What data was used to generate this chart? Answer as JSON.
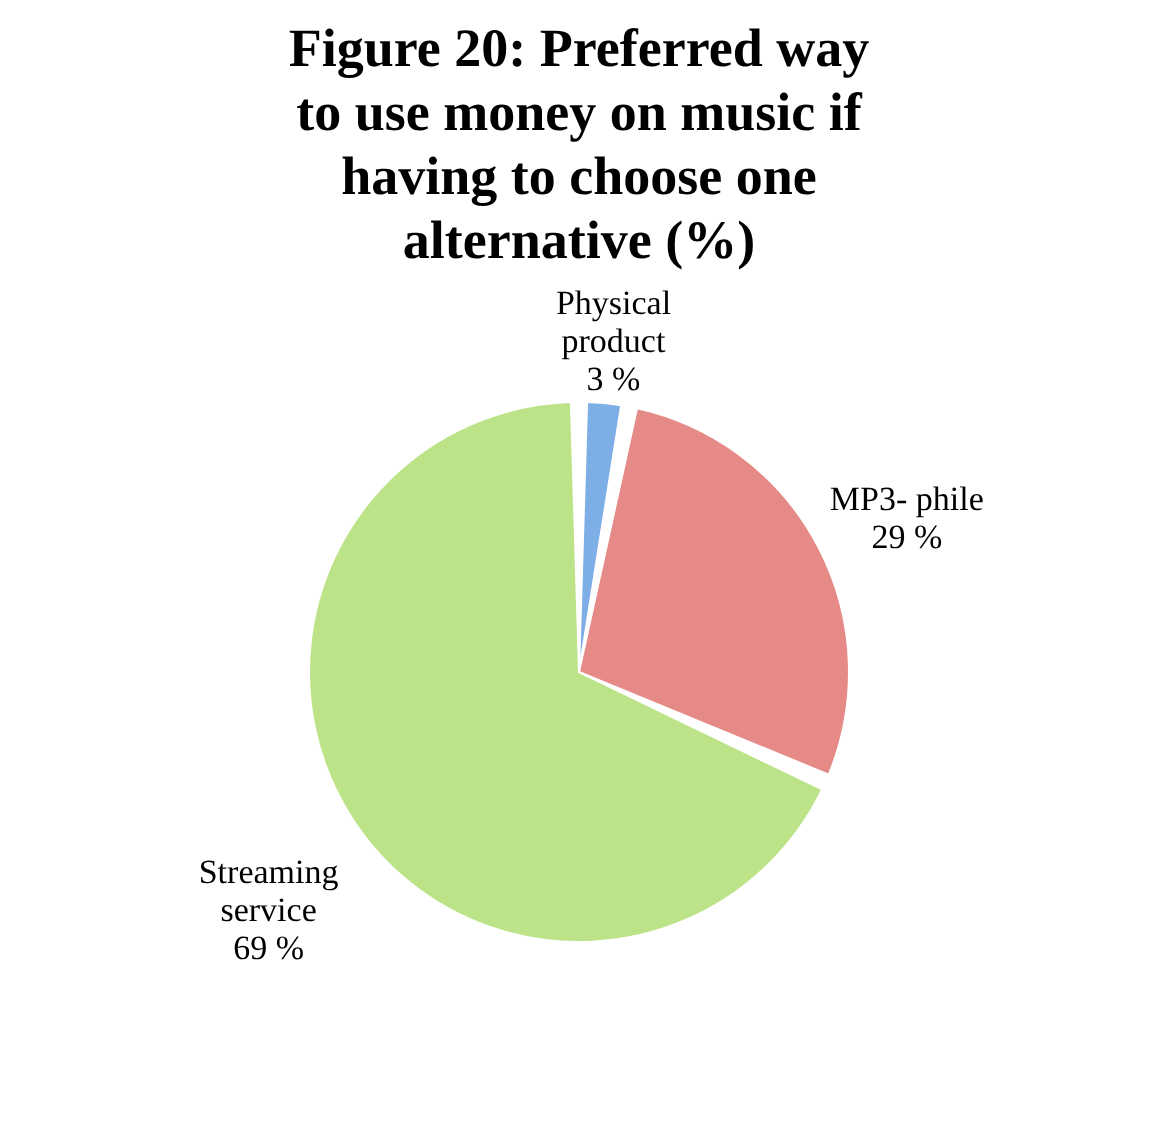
{
  "chart_data": {
    "type": "pie",
    "title": "Figure 20: Preferred way to use money on music if having to choose one alternative (%)",
    "categories": [
      "Physical product",
      "MP3- phile",
      "Streaming service"
    ],
    "values": [
      3,
      29,
      69
    ],
    "colors": [
      "#7eaee6",
      "#e58a86",
      "#bde389"
    ],
    "value_labels": [
      "3 %",
      "29 %",
      "69 %"
    ]
  }
}
